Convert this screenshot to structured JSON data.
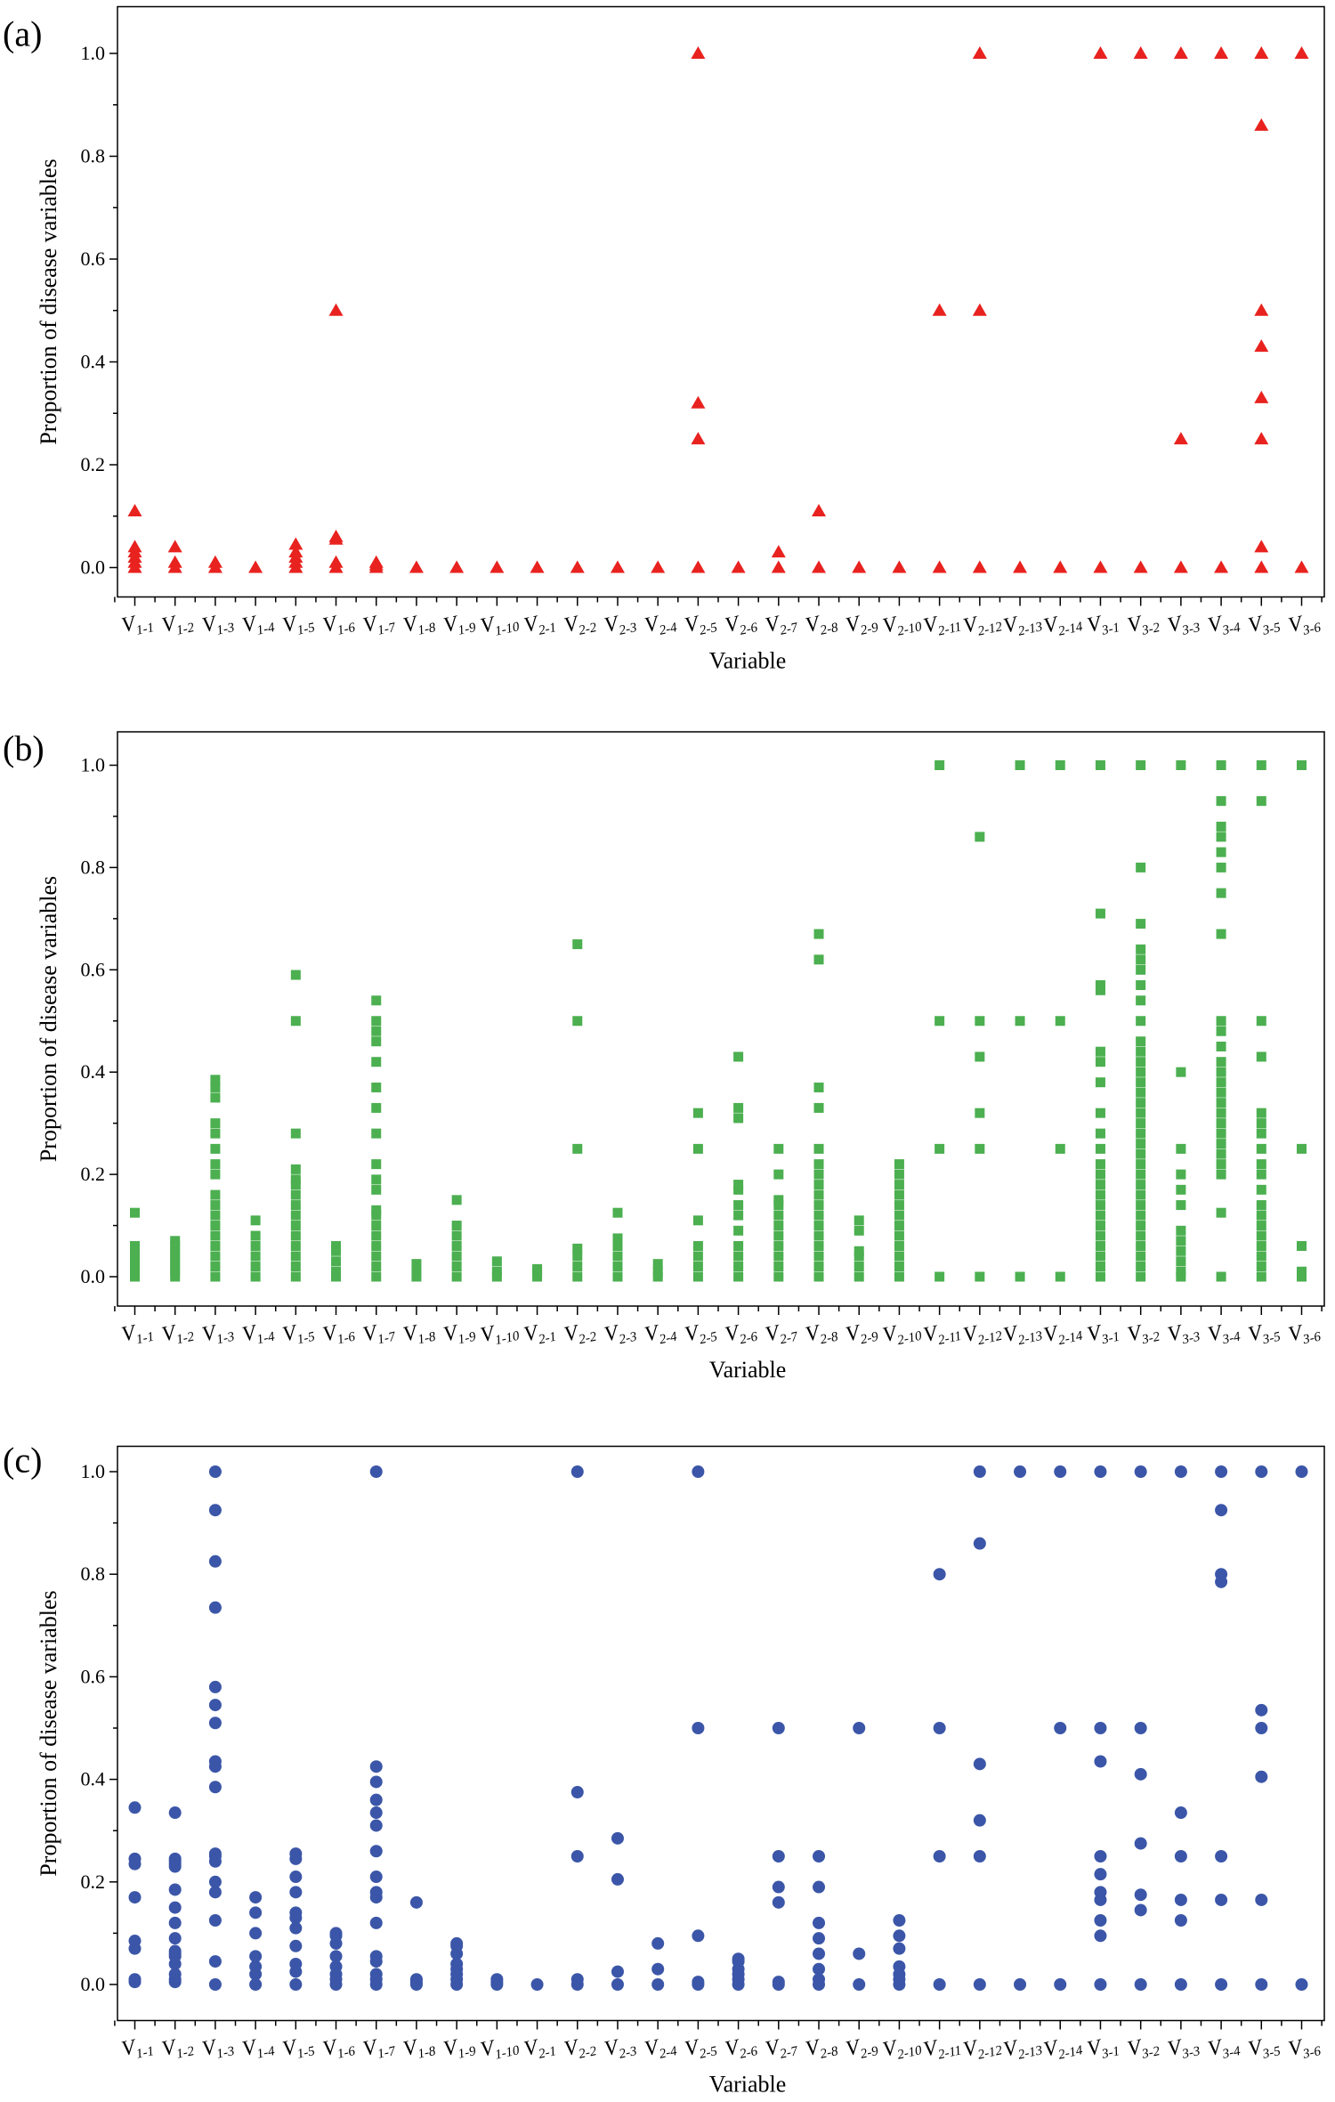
{
  "chart_data": [
    {
      "type": "scatter",
      "panel": "(a)",
      "marker": "triangle",
      "color": "#e8221f",
      "xlabel": "Variable",
      "ylabel": "Proportion of disease variables",
      "ylim": [
        0,
        1
      ],
      "yticks": [
        "0.0",
        "0.2",
        "0.4",
        "0.6",
        "0.8",
        "1.0"
      ],
      "categories": [
        {
          "main": "V",
          "sub": "1-1"
        },
        {
          "main": "V",
          "sub": "1-2"
        },
        {
          "main": "V",
          "sub": "1-3"
        },
        {
          "main": "V",
          "sub": "1-4"
        },
        {
          "main": "V",
          "sub": "1-5"
        },
        {
          "main": "V",
          "sub": "1-6"
        },
        {
          "main": "V",
          "sub": "1-7"
        },
        {
          "main": "V",
          "sub": "1-8"
        },
        {
          "main": "V",
          "sub": "1-9"
        },
        {
          "main": "V",
          "sub": "1-10"
        },
        {
          "main": "V",
          "sub": "2-1"
        },
        {
          "main": "V",
          "sub": "2-2"
        },
        {
          "main": "V",
          "sub": "2-3"
        },
        {
          "main": "V",
          "sub": "2-4"
        },
        {
          "main": "V",
          "sub": "2-5"
        },
        {
          "main": "V",
          "sub": "2-6"
        },
        {
          "main": "V",
          "sub": "2-7"
        },
        {
          "main": "V",
          "sub": "2-8"
        },
        {
          "main": "V",
          "sub": "2-9"
        },
        {
          "main": "V",
          "sub": "2-10"
        },
        {
          "main": "V",
          "sub": "2-11"
        },
        {
          "main": "V",
          "sub": "2-12"
        },
        {
          "main": "V",
          "sub": "2-13"
        },
        {
          "main": "V",
          "sub": "2-14"
        },
        {
          "main": "V",
          "sub": "3-1"
        },
        {
          "main": "V",
          "sub": "3-2"
        },
        {
          "main": "V",
          "sub": "3-3"
        },
        {
          "main": "V",
          "sub": "3-4"
        },
        {
          "main": "V",
          "sub": "3-5"
        },
        {
          "main": "V",
          "sub": "3-6"
        }
      ],
      "series": [
        [
          0,
          0.01,
          0.02,
          0.03,
          0.04,
          0.11
        ],
        [
          0,
          0.01,
          0.04
        ],
        [
          0,
          0.01
        ],
        [
          0
        ],
        [
          0,
          0.01,
          0.02,
          0.03,
          0.045
        ],
        [
          0,
          0.01,
          0.055,
          0.06,
          0.5
        ],
        [
          0,
          0.005,
          0.01
        ],
        [
          0
        ],
        [
          0
        ],
        [
          0
        ],
        [
          0
        ],
        [
          0
        ],
        [
          0
        ],
        [
          0
        ],
        [
          0,
          0.25,
          0.32,
          1.0
        ],
        [
          0
        ],
        [
          0,
          0.03
        ],
        [
          0,
          0.11
        ],
        [
          0
        ],
        [
          0
        ],
        [
          0,
          0.5
        ],
        [
          0,
          0.5,
          1.0
        ],
        [
          0
        ],
        [
          0
        ],
        [
          0,
          1.0
        ],
        [
          0,
          1.0
        ],
        [
          0,
          0.25,
          1.0
        ],
        [
          0,
          1.0
        ],
        [
          0,
          0.04,
          0.25,
          0.33,
          0.43,
          0.5,
          0.86,
          1.0
        ],
        [
          0,
          1.0
        ]
      ]
    },
    {
      "type": "scatter",
      "panel": "(b)",
      "marker": "square",
      "color": "#4caf50",
      "xlabel": "Variable",
      "ylabel": "Proportion of disease variables",
      "ylim": [
        0,
        1
      ],
      "yticks": [
        "0.0",
        "0.2",
        "0.4",
        "0.6",
        "0.8",
        "1.0"
      ],
      "categories": "same",
      "series": [
        [
          0,
          0.01,
          0.02,
          0.03,
          0.04,
          0.05,
          0.06,
          0.125
        ],
        [
          0,
          0.01,
          0.02,
          0.03,
          0.04,
          0.05,
          0.06,
          0.07
        ],
        [
          0,
          0.02,
          0.04,
          0.06,
          0.08,
          0.1,
          0.12,
          0.14,
          0.16,
          0.2,
          0.22,
          0.25,
          0.28,
          0.3,
          0.35,
          0.37,
          0.385
        ],
        [
          0,
          0.02,
          0.04,
          0.06,
          0.08,
          0.11
        ],
        [
          0,
          0.02,
          0.04,
          0.06,
          0.08,
          0.1,
          0.12,
          0.14,
          0.16,
          0.18,
          0.19,
          0.21,
          0.28,
          0.5,
          0.59
        ],
        [
          0,
          0.01,
          0.03,
          0.05,
          0.06
        ],
        [
          0,
          0.02,
          0.04,
          0.06,
          0.08,
          0.1,
          0.12,
          0.13,
          0.17,
          0.19,
          0.22,
          0.28,
          0.33,
          0.37,
          0.42,
          0.46,
          0.48,
          0.5,
          0.54
        ],
        [
          0,
          0.01,
          0.025
        ],
        [
          0,
          0.02,
          0.04,
          0.06,
          0.08,
          0.1,
          0.15
        ],
        [
          0,
          0.01,
          0.03
        ],
        [
          0,
          0.01,
          0.015
        ],
        [
          0,
          0.02,
          0.04,
          0.055,
          0.25,
          0.5,
          0.65
        ],
        [
          0,
          0.02,
          0.04,
          0.06,
          0.075,
          0.125
        ],
        [
          0,
          0.01,
          0.025
        ],
        [
          0,
          0.02,
          0.04,
          0.06,
          0.11,
          0.25,
          0.32
        ],
        [
          0,
          0.02,
          0.04,
          0.06,
          0.09,
          0.12,
          0.14,
          0.17,
          0.18,
          0.31,
          0.33,
          0.43
        ],
        [
          0,
          0.02,
          0.04,
          0.06,
          0.08,
          0.1,
          0.12,
          0.14,
          0.15,
          0.2,
          0.25
        ],
        [
          0,
          0.02,
          0.04,
          0.06,
          0.08,
          0.1,
          0.12,
          0.14,
          0.16,
          0.18,
          0.2,
          0.22,
          0.25,
          0.33,
          0.37,
          0.62,
          0.67
        ],
        [
          0,
          0.02,
          0.04,
          0.05,
          0.09,
          0.11
        ],
        [
          0,
          0.02,
          0.04,
          0.06,
          0.08,
          0.1,
          0.12,
          0.14,
          0.16,
          0.18,
          0.2,
          0.22
        ],
        [
          0,
          0.25,
          0.5,
          1.0
        ],
        [
          0,
          0.25,
          0.32,
          0.43,
          0.5,
          0.86
        ],
        [
          0,
          0.5,
          1.0
        ],
        [
          0,
          0.25,
          0.5,
          1.0
        ],
        [
          0,
          0.02,
          0.04,
          0.06,
          0.08,
          0.1,
          0.12,
          0.14,
          0.16,
          0.18,
          0.2,
          0.22,
          0.25,
          0.28,
          0.32,
          0.38,
          0.42,
          0.44,
          0.56,
          0.57,
          0.71,
          1.0
        ],
        [
          0,
          0.02,
          0.04,
          0.06,
          0.08,
          0.1,
          0.12,
          0.14,
          0.16,
          0.18,
          0.2,
          0.22,
          0.24,
          0.26,
          0.28,
          0.3,
          0.32,
          0.34,
          0.36,
          0.38,
          0.4,
          0.42,
          0.44,
          0.46,
          0.5,
          0.54,
          0.57,
          0.6,
          0.62,
          0.64,
          0.69,
          0.8,
          1.0
        ],
        [
          0,
          0.01,
          0.03,
          0.05,
          0.07,
          0.09,
          0.14,
          0.17,
          0.2,
          0.25,
          0.4,
          1.0
        ],
        [
          0,
          0.125,
          0.2,
          0.22,
          0.24,
          0.26,
          0.28,
          0.3,
          0.32,
          0.34,
          0.36,
          0.38,
          0.4,
          0.42,
          0.45,
          0.48,
          0.5,
          0.67,
          0.75,
          0.8,
          0.83,
          0.86,
          0.88,
          0.93,
          1.0
        ],
        [
          0,
          0.02,
          0.04,
          0.06,
          0.08,
          0.1,
          0.12,
          0.14,
          0.17,
          0.2,
          0.22,
          0.25,
          0.28,
          0.3,
          0.32,
          0.43,
          0.5,
          0.93,
          1.0
        ],
        [
          0,
          0.01,
          0.06,
          0.25,
          1.0
        ]
      ]
    },
    {
      "type": "scatter",
      "panel": "(c)",
      "marker": "circle",
      "color": "#3b56a8",
      "xlabel": "Variable",
      "ylabel": "Proportion of disease variables",
      "ylim": [
        0,
        1
      ],
      "yticks": [
        "0.0",
        "0.2",
        "0.4",
        "0.6",
        "0.8",
        "1.0"
      ],
      "categories": "same",
      "series": [
        [
          0.005,
          0.01,
          0.07,
          0.085,
          0.17,
          0.235,
          0.245,
          0.345
        ],
        [
          0.005,
          0.01,
          0.02,
          0.04,
          0.055,
          0.06,
          0.065,
          0.09,
          0.12,
          0.15,
          0.185,
          0.23,
          0.235,
          0.24,
          0.245,
          0.335
        ],
        [
          0,
          0.045,
          0.125,
          0.18,
          0.2,
          0.24,
          0.25,
          0.255,
          0.385,
          0.425,
          0.435,
          0.51,
          0.545,
          0.58,
          0.735,
          0.825,
          0.925,
          1.0
        ],
        [
          0,
          0.02,
          0.035,
          0.055,
          0.1,
          0.14,
          0.17
        ],
        [
          0,
          0.025,
          0.04,
          0.075,
          0.11,
          0.13,
          0.14,
          0.18,
          0.21,
          0.245,
          0.255
        ],
        [
          0,
          0.01,
          0.02,
          0.035,
          0.055,
          0.08,
          0.095,
          0.1
        ],
        [
          0,
          0.01,
          0.02,
          0.045,
          0.055,
          0.12,
          0.17,
          0.18,
          0.21,
          0.26,
          0.31,
          0.335,
          0.36,
          0.395,
          0.425,
          1.0
        ],
        [
          0,
          0.005,
          0.01,
          0.16
        ],
        [
          0,
          0.01,
          0.02,
          0.03,
          0.04,
          0.06,
          0.075,
          0.08
        ],
        [
          0,
          0.005,
          0.01
        ],
        [
          0
        ],
        [
          0,
          0.01,
          0.25,
          0.375,
          1.0
        ],
        [
          0,
          0.025,
          0.205,
          0.285
        ],
        [
          0,
          0.03,
          0.08
        ],
        [
          0,
          0.005,
          0.095,
          0.5,
          1.0
        ],
        [
          0,
          0.01,
          0.02,
          0.03,
          0.045,
          0.05
        ],
        [
          0,
          0.005,
          0.16,
          0.19,
          0.25,
          0.5
        ],
        [
          0,
          0.01,
          0.03,
          0.06,
          0.09,
          0.12,
          0.19,
          0.25
        ],
        [
          0,
          0.06,
          0.5
        ],
        [
          0,
          0.01,
          0.02,
          0.035,
          0.07,
          0.095,
          0.125
        ],
        [
          0,
          0.25,
          0.5,
          0.8
        ],
        [
          0,
          0.25,
          0.32,
          0.43,
          0.86,
          1.0
        ],
        [
          0,
          1.0
        ],
        [
          0,
          0.5,
          1.0
        ],
        [
          0,
          0.095,
          0.125,
          0.165,
          0.18,
          0.215,
          0.25,
          0.435,
          0.5,
          1.0
        ],
        [
          0,
          0.145,
          0.175,
          0.275,
          0.41,
          0.5,
          1.0
        ],
        [
          0,
          0.125,
          0.165,
          0.25,
          0.335,
          1.0
        ],
        [
          0,
          0.165,
          0.25,
          0.785,
          0.8,
          0.925,
          1.0
        ],
        [
          0,
          0.165,
          0.405,
          0.5,
          0.535,
          1.0
        ],
        [
          0,
          1.0
        ]
      ]
    }
  ]
}
